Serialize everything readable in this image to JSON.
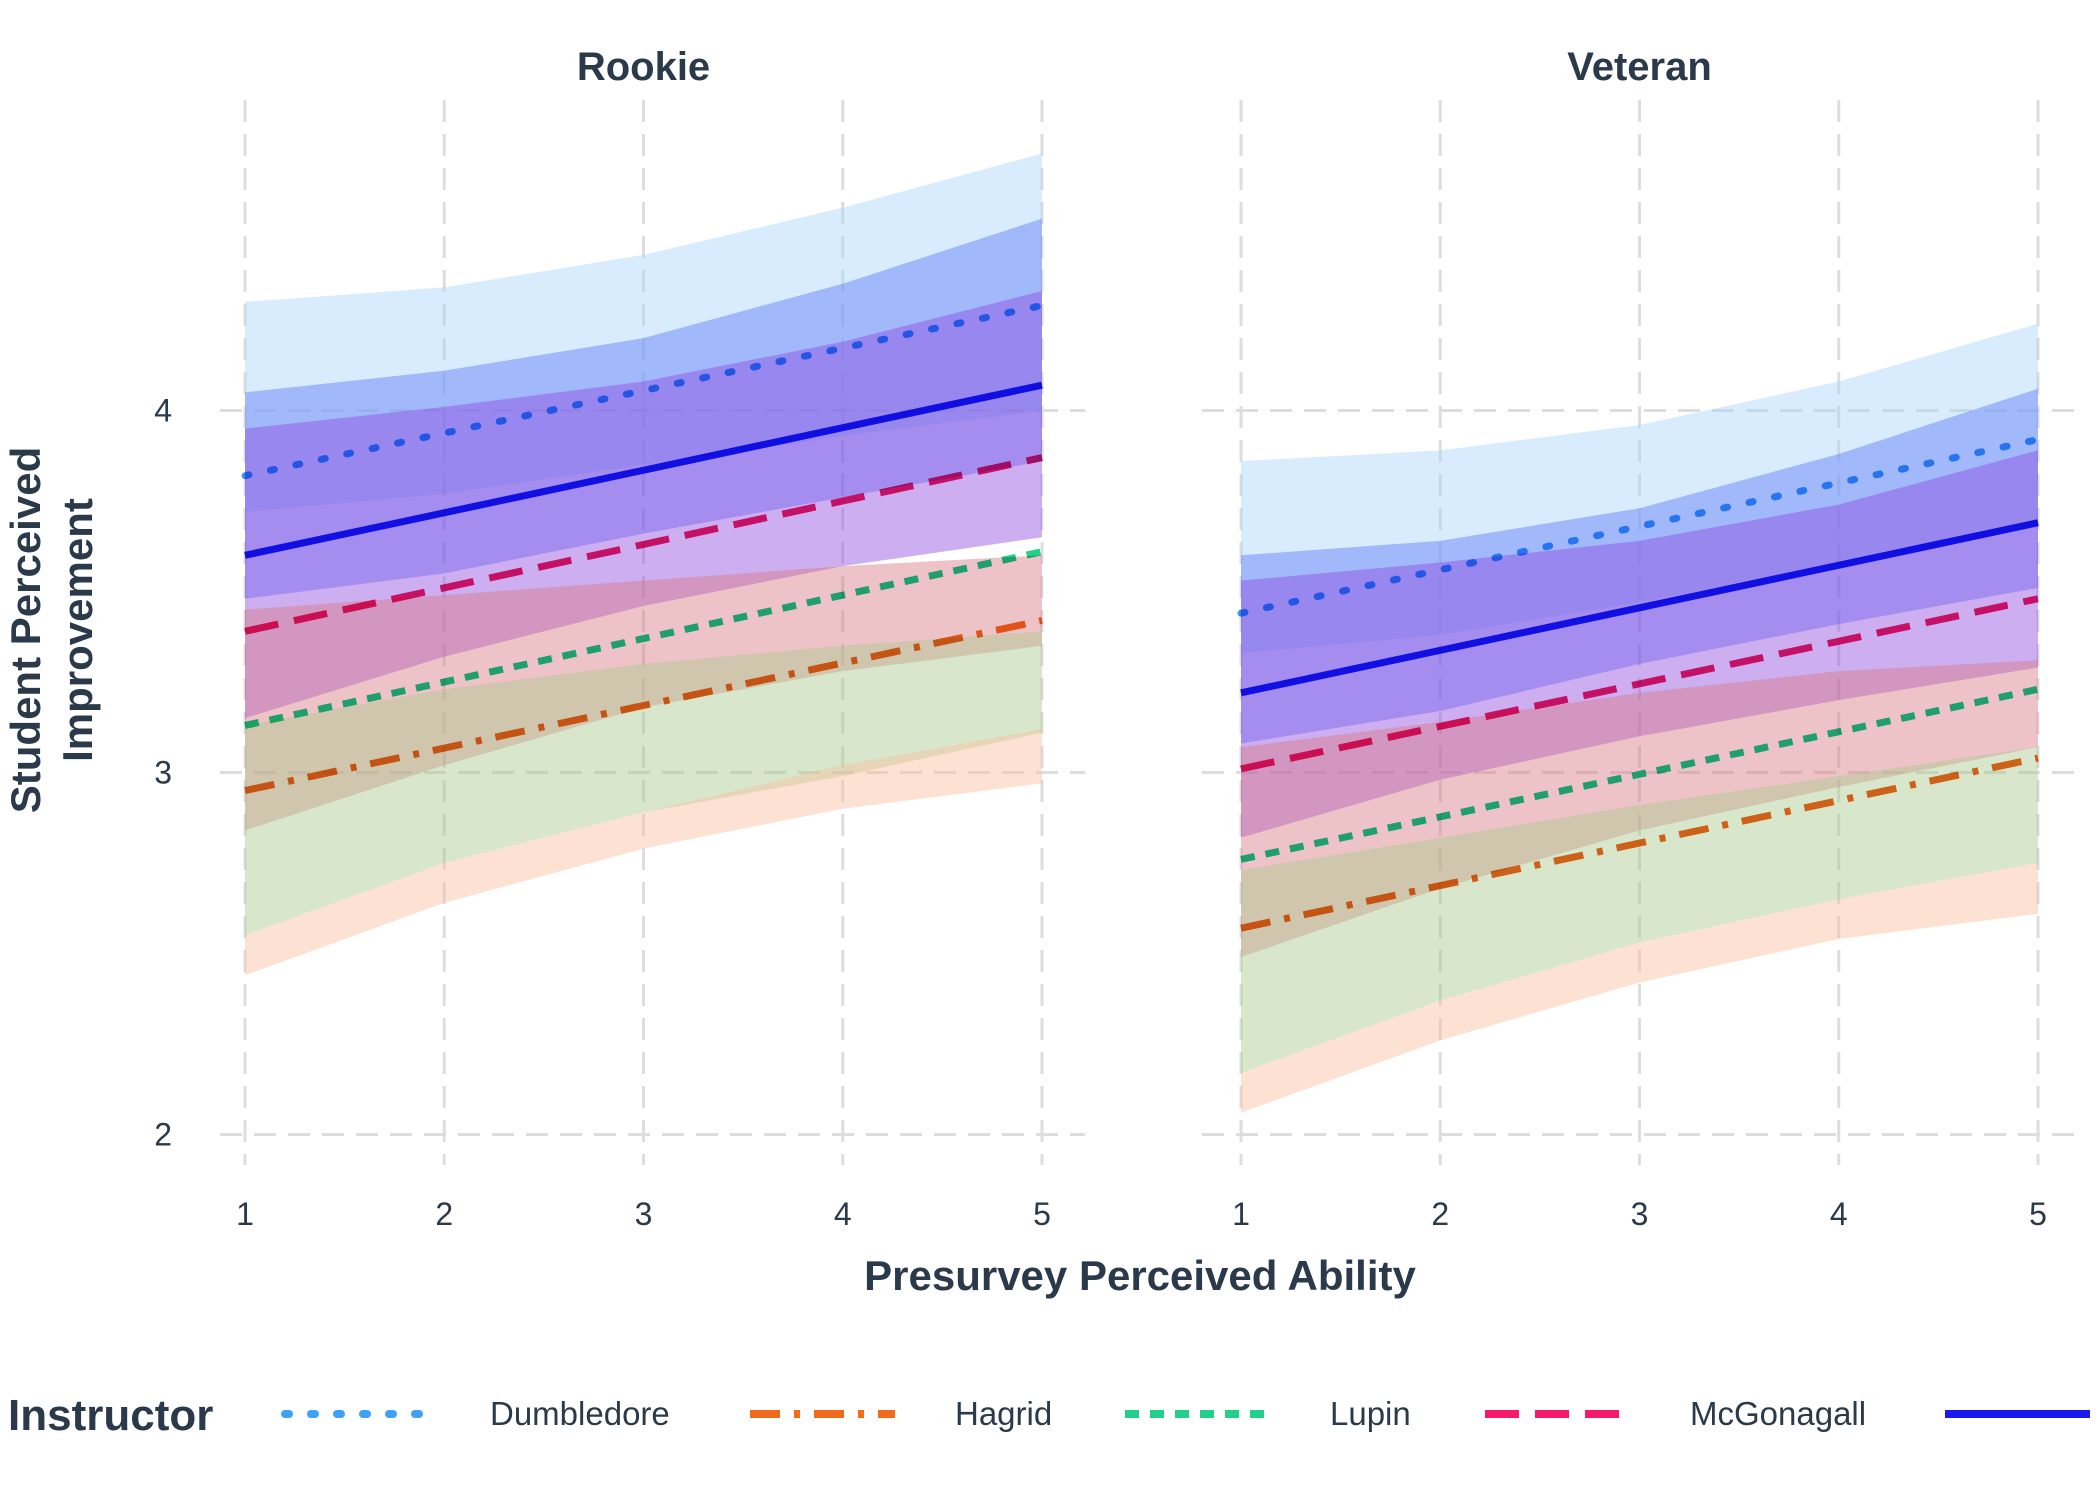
{
  "chart_data": {
    "type": "line",
    "xlabel": "Presurvey Perceived Ability",
    "ylabel_lines": [
      "Student Perceived",
      "Improvement"
    ],
    "x_ticks": [
      1,
      2,
      3,
      4,
      5
    ],
    "y_ticks": [
      2,
      3,
      4
    ],
    "xlim": [
      1,
      5
    ],
    "ylim": [
      1.95,
      4.78
    ],
    "grid": true,
    "legend": {
      "title": "Instructor",
      "position": "bottom",
      "items": [
        {
          "name": "Dumbledore",
          "color": "#3ea1f5",
          "dash": "dotted"
        },
        {
          "name": "Hagrid",
          "color": "#f26b1d",
          "dash": "dotdash"
        },
        {
          "name": "Lupin",
          "color": "#22d08a",
          "dash": "dashed-short"
        },
        {
          "name": "McGonagall",
          "color": "#f5186b",
          "dash": "dashed-long"
        },
        {
          "name": "",
          "color": "#1a1af0",
          "dash": "solid"
        }
      ]
    },
    "panels": [
      {
        "title": "Rookie",
        "bands": [
          {
            "color": "#a9d4fa",
            "x": [
              1,
              2,
              3,
              4,
              5
            ],
            "lower": [
              3.72,
              3.77,
              3.85,
              3.93,
              4.0
            ],
            "upper": [
              4.3,
              4.34,
              4.43,
              4.56,
              4.71
            ]
          },
          {
            "color": "#5f79f7",
            "x": [
              1,
              2,
              3,
              4,
              5
            ],
            "lower": [
              3.48,
              3.55,
              3.66,
              3.76,
              3.86
            ],
            "upper": [
              4.05,
              4.11,
              4.2,
              4.35,
              4.53
            ]
          },
          {
            "color": "#8e4ce0",
            "x": [
              1,
              2,
              3,
              4,
              5
            ],
            "lower": [
              3.15,
              3.32,
              3.46,
              3.57,
              3.65
            ],
            "upper": [
              3.95,
              4.01,
              4.08,
              4.19,
              4.33
            ]
          },
          {
            "color": "#d97a86",
            "x": [
              1,
              2,
              3,
              4,
              5
            ],
            "lower": [
              2.84,
              3.02,
              3.18,
              3.28,
              3.35
            ],
            "upper": [
              3.45,
              3.49,
              3.53,
              3.57,
              3.6
            ]
          },
          {
            "color": "#a8c98b",
            "x": [
              1,
              2,
              3,
              4,
              5
            ],
            "lower": [
              2.55,
              2.75,
              2.89,
              2.99,
              3.11
            ],
            "upper": [
              3.13,
              3.23,
              3.3,
              3.35,
              3.39
            ]
          },
          {
            "color": "#fbbfa0",
            "x": [
              1,
              2,
              3,
              4,
              5
            ],
            "lower": [
              2.44,
              2.64,
              2.79,
              2.9,
              2.97
            ],
            "upper": [
              2.55,
              2.75,
              2.89,
              3.02,
              3.12
            ]
          }
        ],
        "series": [
          {
            "name": "Dumbledore",
            "x": [
              1,
              5
            ],
            "y": [
              3.82,
              4.29
            ]
          },
          {
            "name": "Hagrid",
            "x": [
              1,
              5
            ],
            "y": [
              2.95,
              3.42
            ]
          },
          {
            "name": "Lupin",
            "x": [
              1,
              5
            ],
            "y": [
              3.13,
              3.61
            ]
          },
          {
            "name": "McGonagall",
            "x": [
              1,
              5
            ],
            "y": [
              3.39,
              3.87
            ]
          },
          {
            "name": "",
            "x": [
              1,
              5
            ],
            "y": [
              3.6,
              4.07
            ]
          }
        ]
      },
      {
        "title": "Veteran",
        "bands": [
          {
            "color": "#a9d4fa",
            "x": [
              1,
              2,
              3,
              4,
              5
            ],
            "lower": [
              3.33,
              3.38,
              3.47,
              3.58,
              3.68
            ],
            "upper": [
              3.86,
              3.89,
              3.96,
              4.08,
              4.24
            ]
          },
          {
            "color": "#5f79f7",
            "x": [
              1,
              2,
              3,
              4,
              5
            ],
            "lower": [
              3.08,
              3.17,
              3.3,
              3.41,
              3.51
            ],
            "upper": [
              3.6,
              3.64,
              3.73,
              3.88,
              4.06
            ]
          },
          {
            "color": "#8e4ce0",
            "x": [
              1,
              2,
              3,
              4,
              5
            ],
            "lower": [
              2.82,
              2.98,
              3.1,
              3.2,
              3.29
            ],
            "upper": [
              3.53,
              3.58,
              3.64,
              3.74,
              3.89
            ]
          },
          {
            "color": "#d97a86",
            "x": [
              1,
              2,
              3,
              4,
              5
            ],
            "lower": [
              2.49,
              2.68,
              2.84,
              2.96,
              3.07
            ],
            "upper": [
              3.07,
              3.14,
              3.22,
              3.28,
              3.31
            ]
          },
          {
            "color": "#a8c98b",
            "x": [
              1,
              2,
              3,
              4,
              5
            ],
            "lower": [
              2.17,
              2.37,
              2.53,
              2.65,
              2.75
            ],
            "upper": [
              2.73,
              2.82,
              2.91,
              2.99,
              3.07
            ]
          },
          {
            "color": "#fbbfa0",
            "x": [
              1,
              2,
              3,
              4,
              5
            ],
            "lower": [
              2.06,
              2.26,
              2.42,
              2.54,
              2.61
            ],
            "upper": [
              2.17,
              2.37,
              2.53,
              2.65,
              2.75
            ]
          }
        ],
        "series": [
          {
            "name": "Dumbledore",
            "x": [
              1,
              5
            ],
            "y": [
              3.44,
              3.92
            ]
          },
          {
            "name": "Hagrid",
            "x": [
              1,
              5
            ],
            "y": [
              2.57,
              3.04
            ]
          },
          {
            "name": "Lupin",
            "x": [
              1,
              5
            ],
            "y": [
              2.76,
              3.23
            ]
          },
          {
            "name": "McGonagall",
            "x": [
              1,
              5
            ],
            "y": [
              3.01,
              3.48
            ]
          },
          {
            "name": "",
            "x": [
              1,
              5
            ],
            "y": [
              3.22,
              3.69
            ]
          }
        ]
      }
    ]
  }
}
